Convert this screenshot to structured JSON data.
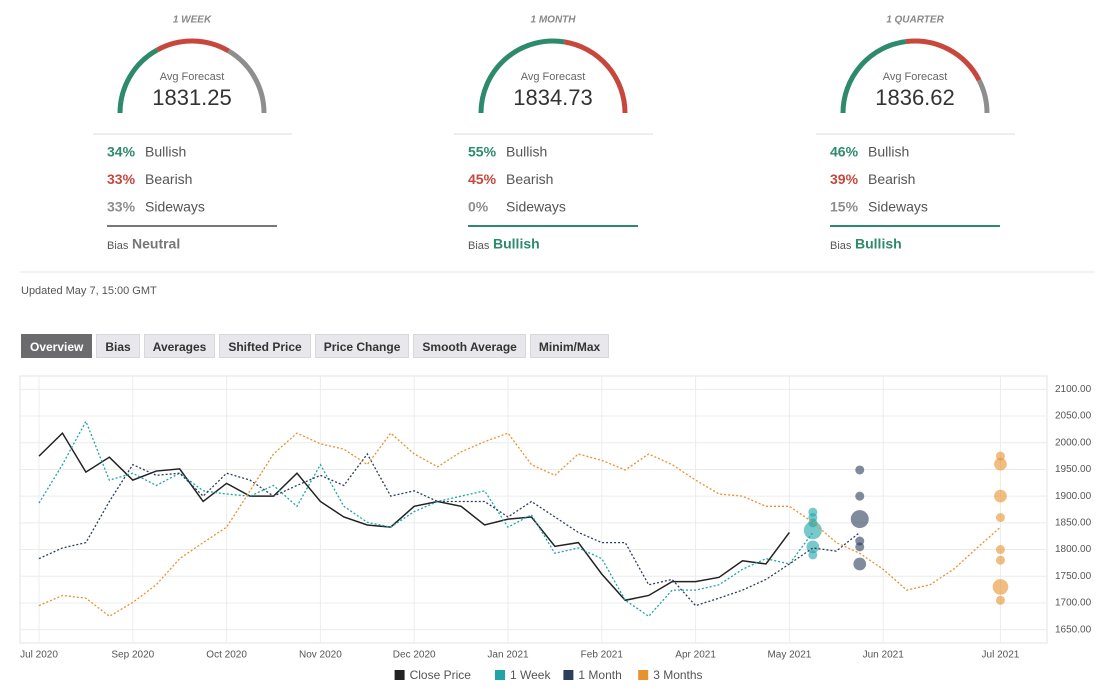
{
  "gauge_colors": [
    "#2e8a6c",
    "#c8473c",
    "#8e8e8e"
  ],
  "gauges": [
    {
      "period": "1 WEEK",
      "avg_label": "Avg Forecast",
      "avg": 1831.25,
      "names": [
        "Bullish",
        "Bearish",
        "Sideways"
      ],
      "values": [
        34,
        33,
        33
      ],
      "value_labels": [
        "34%",
        "33%",
        "33%"
      ],
      "bias_label": "Bias",
      "bias": "Neutral",
      "bias_color": "#777777"
    },
    {
      "period": "1 MONTH",
      "avg_label": "Avg Forecast",
      "avg": 1834.73,
      "names": [
        "Bullish",
        "Bearish",
        "Sideways"
      ],
      "values": [
        55,
        45,
        0
      ],
      "value_labels": [
        "55%",
        "45%",
        "0%"
      ],
      "bias_label": "Bias",
      "bias": "Bullish",
      "bias_color": "#2e8a6c"
    },
    {
      "period": "1 QUARTER",
      "avg_label": "Avg Forecast",
      "avg": 1836.62,
      "names": [
        "Bullish",
        "Bearish",
        "Sideways"
      ],
      "values": [
        46,
        39,
        15
      ],
      "value_labels": [
        "46%",
        "39%",
        "15%"
      ],
      "bias_label": "Bias",
      "bias": "Bullish",
      "bias_color": "#2e8a6c"
    }
  ],
  "updated": "Updated May 7, 15:00 GMT",
  "tabs": [
    "Overview",
    "Bias",
    "Averages",
    "Shifted Price",
    "Price Change",
    "Smooth Average",
    "Minim/Max"
  ],
  "active_tab": 0,
  "chart_data": {
    "type": "line",
    "categories": [
      "Jul 2020",
      null,
      null,
      null,
      "Sep 2020",
      null,
      null,
      null,
      "Oct 2020",
      null,
      null,
      null,
      "Nov 2020",
      null,
      null,
      null,
      "Dec 2020",
      null,
      null,
      null,
      "Jan 2021",
      null,
      null,
      null,
      "Feb 2021",
      null,
      null,
      null,
      "Apr 2021",
      null,
      null,
      null,
      "May 2021",
      null,
      null,
      null,
      "Jun 2021",
      null,
      null,
      null,
      null,
      "Jul 2021"
    ],
    "ylim": [
      1625,
      2125
    ],
    "yticks": [
      {
        "value": 1650,
        "label": "1650.00"
      },
      {
        "value": 1700,
        "label": "1700.00"
      },
      {
        "value": 1750,
        "label": "1750.00"
      },
      {
        "value": 1800,
        "label": "1800.00"
      },
      {
        "value": 1850,
        "label": "1850.00"
      },
      {
        "value": 1900,
        "label": "1900.00"
      },
      {
        "value": 1950,
        "label": "1950.00"
      },
      {
        "value": 2000,
        "label": "2000.00"
      },
      {
        "value": 2050,
        "label": "2050.00"
      },
      {
        "value": 2100,
        "label": "2100.00"
      }
    ],
    "grid": true,
    "series": [
      {
        "name": "Close Price",
        "color": "#222222",
        "style": "solid",
        "values": [
          1975,
          2018,
          1945,
          1973,
          1930,
          1947,
          1951,
          1890,
          1924,
          1900,
          1900,
          1943,
          1890,
          1861,
          1846,
          1842,
          1881,
          1890,
          1881,
          1846,
          1857,
          1861,
          1806,
          1813,
          1754,
          1705,
          1714,
          1740,
          1740,
          1748,
          1779,
          1773,
          1832,
          null,
          null,
          null,
          null,
          null,
          null,
          null,
          null,
          null
        ]
      },
      {
        "name": "1 Week",
        "color": "#1fa5a8",
        "style": "dotted",
        "values": [
          1887,
          1959,
          2040,
          1930,
          1943,
          1920,
          1943,
          1910,
          1904,
          1900,
          1920,
          1881,
          1959,
          1881,
          1851,
          1842,
          1871,
          1890,
          1900,
          1910,
          1842,
          1865,
          1793,
          1803,
          1783,
          1705,
          1675,
          1724,
          1724,
          1734,
          1763,
          1783,
          1773,
          1832,
          null,
          null,
          null,
          null,
          null,
          null,
          null,
          null
        ],
        "forecast": {
          "values": [
            1870,
            1860,
            1850,
            1836,
            1805,
            1790
          ],
          "sizes": [
            1,
            1,
            1,
            4,
            2,
            1
          ]
        }
      },
      {
        "name": "1 Month",
        "color": "#2c3e5c",
        "style": "dotted",
        "values": [
          1783,
          1803,
          1813,
          1890,
          1959,
          1939,
          1943,
          1900,
          1943,
          1930,
          1900,
          1920,
          1939,
          1920,
          1979,
          1900,
          1910,
          1890,
          1890,
          1890,
          1861,
          1890,
          1861,
          1832,
          1813,
          1813,
          1734,
          1744,
          1695,
          1709,
          1724,
          1744,
          1773,
          1803,
          1797,
          1832,
          null,
          null,
          null,
          null,
          null,
          null
        ],
        "forecast": {
          "values": [
            1949,
            1900,
            1857,
            1816,
            1805,
            1773
          ],
          "sizes": [
            1,
            1,
            4,
            1,
            1,
            2
          ]
        }
      },
      {
        "name": "3 Months",
        "color": "#e8922e",
        "style": "dotted",
        "values": [
          1695,
          1714,
          1709,
          1675,
          1701,
          1734,
          1783,
          1813,
          1842,
          1910,
          1979,
          2018,
          1998,
          1988,
          1959,
          2018,
          1979,
          1955,
          1983,
          2002,
          2018,
          1959,
          1939,
          1979,
          1967,
          1949,
          1979,
          1959,
          1930,
          1904,
          1900,
          1881,
          1881,
          1851,
          1813,
          1793,
          1763,
          1724,
          1734,
          1763,
          1803,
          1842
        ],
        "forecast": {
          "values": [
            1975,
            1960,
            1900,
            1860,
            1800,
            1780,
            1730,
            1705
          ],
          "sizes": [
            1,
            2,
            2,
            1,
            1,
            1,
            3,
            1
          ]
        }
      }
    ]
  }
}
